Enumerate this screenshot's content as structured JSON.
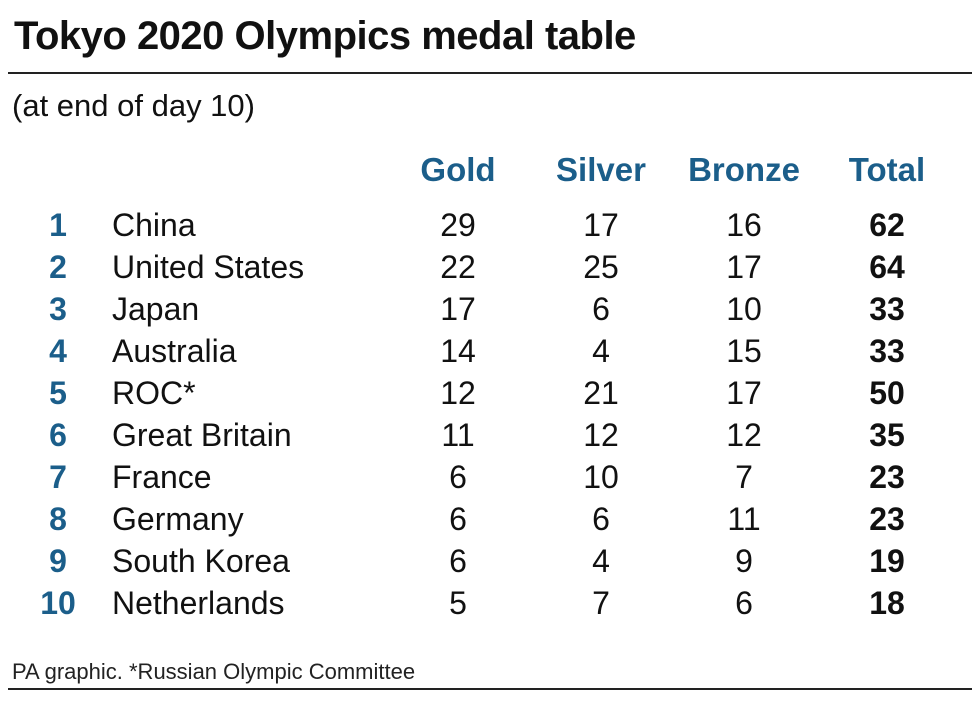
{
  "chart_data": {
    "type": "table",
    "title": "Tokyo 2020 Olympics medal table",
    "subtitle": "(at end of day 10)",
    "columns": {
      "gold": "Gold",
      "silver": "Silver",
      "bronze": "Bronze",
      "total": "Total"
    },
    "rows": [
      {
        "rank": "1",
        "country": "China",
        "gold": 29,
        "silver": 17,
        "bronze": 16,
        "total": 62
      },
      {
        "rank": "2",
        "country": "United States",
        "gold": 22,
        "silver": 25,
        "bronze": 17,
        "total": 64
      },
      {
        "rank": "3",
        "country": "Japan",
        "gold": 17,
        "silver": 6,
        "bronze": 10,
        "total": 33
      },
      {
        "rank": "4",
        "country": "Australia",
        "gold": 14,
        "silver": 4,
        "bronze": 15,
        "total": 33
      },
      {
        "rank": "5",
        "country": "ROC*",
        "gold": 12,
        "silver": 21,
        "bronze": 17,
        "total": 50
      },
      {
        "rank": "6",
        "country": "Great Britain",
        "gold": 11,
        "silver": 12,
        "bronze": 12,
        "total": 35
      },
      {
        "rank": "7",
        "country": "France",
        "gold": 6,
        "silver": 10,
        "bronze": 7,
        "total": 23
      },
      {
        "rank": "8",
        "country": "Germany",
        "gold": 6,
        "silver": 6,
        "bronze": 11,
        "total": 23
      },
      {
        "rank": "9",
        "country": "South Korea",
        "gold": 6,
        "silver": 4,
        "bronze": 9,
        "total": 19
      },
      {
        "rank": "10",
        "country": "Netherlands",
        "gold": 5,
        "silver": 7,
        "bronze": 6,
        "total": 18
      }
    ],
    "footnote": "PA graphic. *Russian Olympic Committee"
  },
  "colors": {
    "accent": "#1b5e8a",
    "text": "#111111",
    "rule": "#222222"
  }
}
